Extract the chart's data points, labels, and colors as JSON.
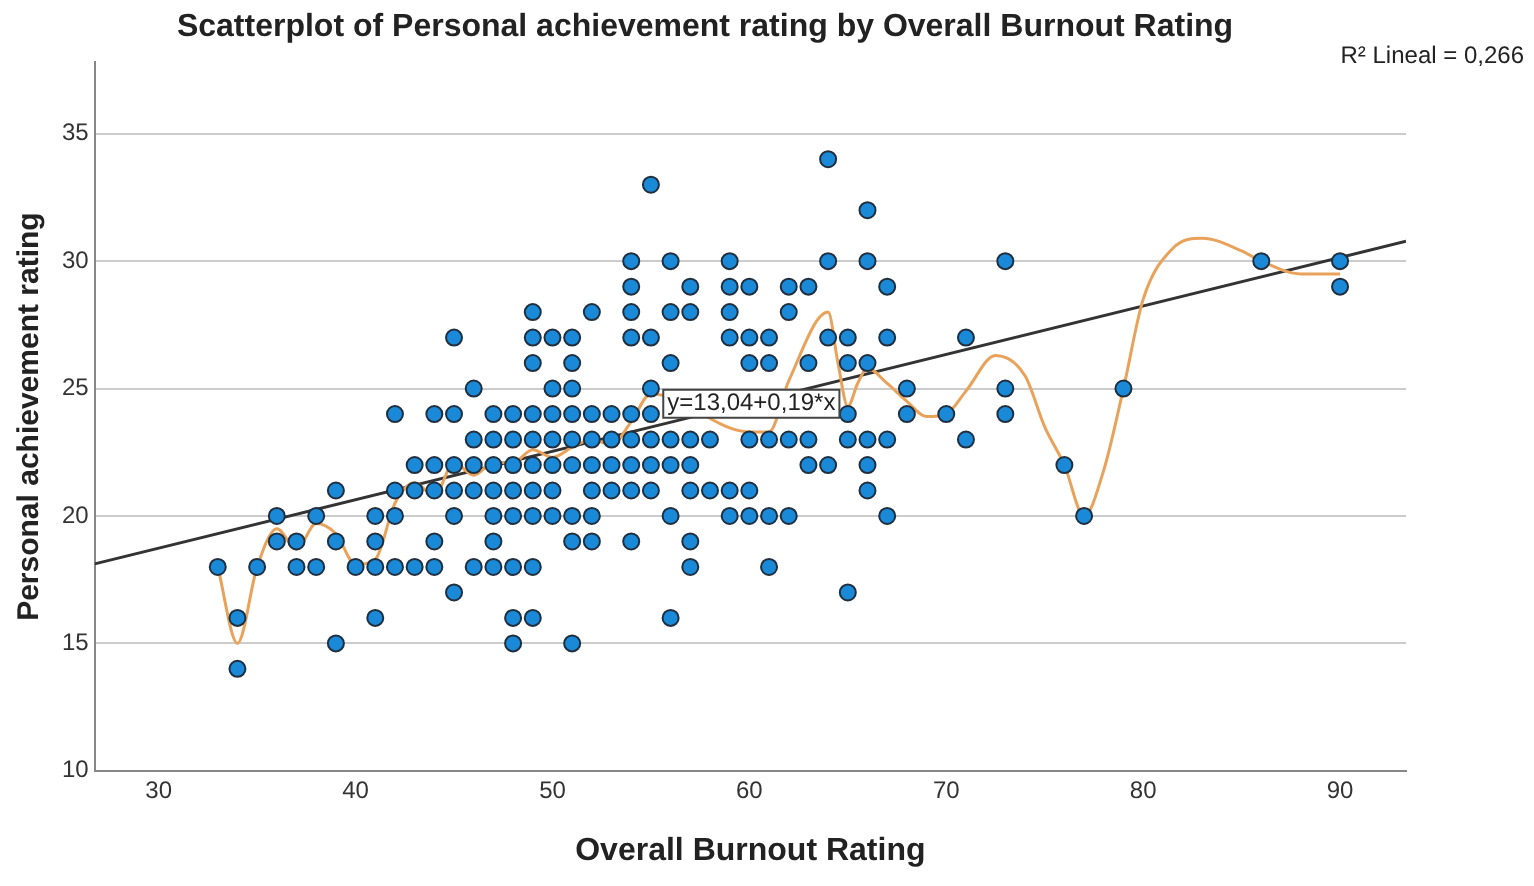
{
  "chart_data": {
    "type": "scatter",
    "title": "Scatterplot of Personal achievement rating by Overall Burnout Rating",
    "xlabel": "Overall Burnout Rating",
    "ylabel": "Personal achievement rating",
    "xlim": [
      26.75,
      93.35
    ],
    "ylim": [
      10,
      37.8
    ],
    "xticks": [
      30,
      40,
      50,
      60,
      70,
      80,
      90
    ],
    "yticks": [
      10,
      15,
      20,
      25,
      30,
      35
    ],
    "grid": "y",
    "legend": false,
    "marker": "circle",
    "annotations": [
      {
        "text": "y=13,04+0,19*x",
        "x": 60.1,
        "y": 24.4
      },
      "R² Lineal = 0,266"
    ],
    "series": [
      {
        "color": "#1a8ad8",
        "x": [
          33,
          34,
          34,
          35,
          36,
          36,
          37,
          37,
          38,
          38,
          39,
          39,
          39,
          40,
          41,
          41,
          41,
          41,
          42,
          42,
          42,
          42,
          43,
          43,
          43,
          44,
          44,
          44,
          44,
          44,
          45,
          45,
          45,
          45,
          45,
          45,
          46,
          46,
          46,
          46,
          46,
          47,
          47,
          47,
          47,
          47,
          47,
          47,
          48,
          48,
          48,
          48,
          48,
          48,
          48,
          48,
          49,
          49,
          49,
          49,
          49,
          49,
          49,
          49,
          49,
          49,
          50,
          50,
          50,
          50,
          50,
          50,
          50,
          51,
          51,
          51,
          51,
          51,
          51,
          51,
          51,
          51,
          52,
          52,
          52,
          52,
          52,
          52,
          52,
          53,
          53,
          53,
          53,
          54,
          54,
          54,
          54,
          54,
          54,
          54,
          54,
          54,
          55,
          55,
          55,
          55,
          55,
          55,
          55,
          56,
          56,
          56,
          56,
          56,
          56,
          56,
          57,
          57,
          57,
          57,
          57,
          57,
          57,
          58,
          58,
          59,
          59,
          59,
          59,
          59,
          59,
          60,
          60,
          60,
          60,
          60,
          60,
          61,
          61,
          61,
          61,
          61,
          62,
          62,
          62,
          62,
          63,
          63,
          63,
          63,
          64,
          64,
          64,
          64,
          65,
          65,
          65,
          65,
          65,
          66,
          66,
          66,
          66,
          66,
          66,
          67,
          67,
          67,
          67,
          68,
          68,
          70,
          71,
          71,
          73,
          73,
          73,
          76,
          77,
          79,
          86,
          90,
          90
        ],
        "values": [
          18,
          16,
          14,
          18,
          20,
          19,
          19,
          18,
          20,
          18,
          21,
          19,
          15,
          18,
          20,
          19,
          18,
          16,
          24,
          21,
          20,
          18,
          22,
          21,
          18,
          24,
          22,
          21,
          19,
          18,
          27,
          24,
          22,
          21,
          20,
          17,
          25,
          23,
          22,
          21,
          18,
          24,
          23,
          22,
          21,
          20,
          19,
          18,
          24,
          23,
          22,
          21,
          20,
          18,
          16,
          15,
          28,
          27,
          26,
          24,
          23,
          22,
          21,
          20,
          18,
          16,
          27,
          25,
          24,
          23,
          22,
          21,
          20,
          27,
          26,
          25,
          24,
          23,
          22,
          20,
          19,
          15,
          28,
          24,
          23,
          22,
          21,
          20,
          19,
          24,
          23,
          22,
          21,
          30,
          29,
          28,
          27,
          24,
          23,
          22,
          21,
          19,
          33,
          27,
          25,
          24,
          23,
          22,
          21,
          30,
          28,
          26,
          23,
          22,
          20,
          16,
          29,
          28,
          23,
          22,
          21,
          19,
          18,
          23,
          21,
          30,
          29,
          28,
          27,
          21,
          20,
          29,
          27,
          26,
          23,
          21,
          20,
          27,
          26,
          23,
          20,
          18,
          29,
          28,
          23,
          20,
          29,
          26,
          23,
          22,
          34,
          30,
          27,
          22,
          27,
          26,
          24,
          23,
          17,
          32,
          30,
          26,
          23,
          22,
          21,
          29,
          27,
          23,
          20,
          25,
          24,
          24,
          27,
          23,
          30,
          25,
          24,
          22,
          20,
          25,
          30,
          30,
          29
        ]
      },
      {
        "type": "line",
        "marker": "none",
        "color": "#e8a25a",
        "x": [
          33,
          34,
          35,
          36,
          37,
          38,
          39,
          40,
          41,
          42,
          43,
          44,
          45,
          46,
          47,
          48,
          49,
          50,
          51,
          52,
          53,
          54,
          55,
          60,
          61,
          62,
          64,
          64.5,
          65,
          65.5,
          66,
          67,
          68,
          69,
          70,
          71,
          72.5,
          74,
          75,
          76,
          77,
          78,
          79,
          80,
          81.5,
          83,
          85,
          86,
          88,
          90
        ],
        "values": [
          18,
          15,
          18,
          19.5,
          18.7,
          19.7,
          19.3,
          18.1,
          18.3,
          20.5,
          21.3,
          20.8,
          22.1,
          21.6,
          22.1,
          22.1,
          22.6,
          22.3,
          22.7,
          23,
          22.8,
          23.7,
          24.8,
          23.3,
          23.3,
          25.3,
          28,
          26,
          24.3,
          25.2,
          25.8,
          25.2,
          24.5,
          23.9,
          24,
          24.9,
          26.3,
          25.5,
          23.5,
          22,
          20,
          21.8,
          25,
          28.5,
          30.5,
          30.9,
          30.4,
          30,
          29.5,
          29.5
        ]
      },
      {
        "type": "line",
        "marker": "none",
        "color": "#333333",
        "x": [
          26.75,
          93.35
        ],
        "values": [
          18.12,
          30.78
        ]
      }
    ]
  }
}
